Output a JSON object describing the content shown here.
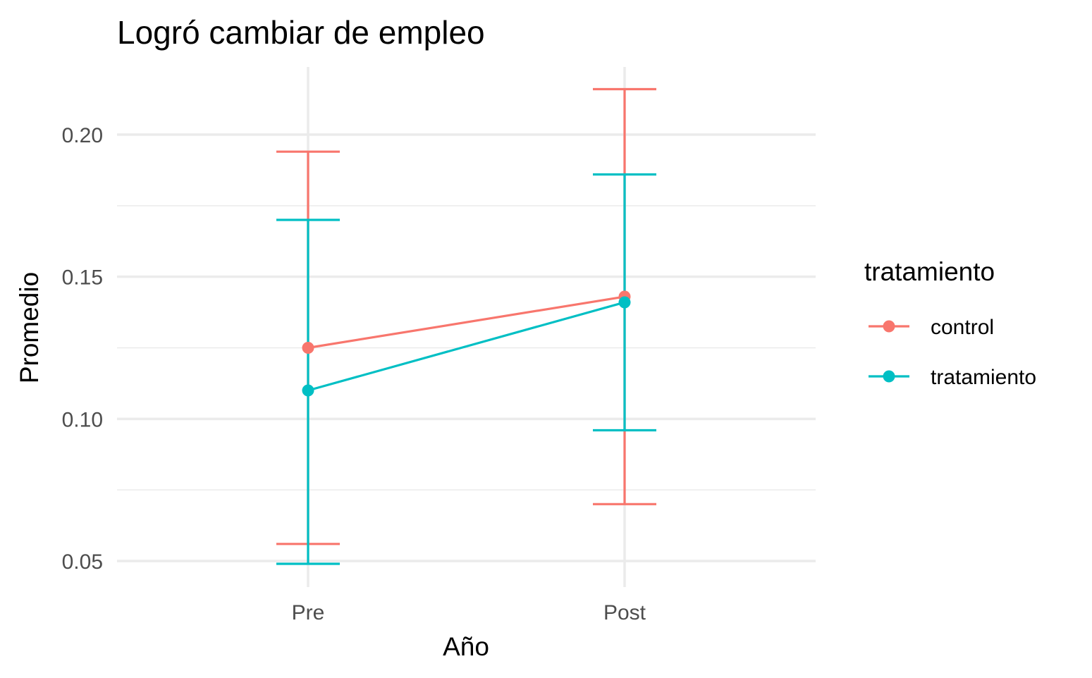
{
  "chart_data": {
    "type": "line",
    "title": "Logró cambiar de empleo",
    "xlabel": "Año",
    "ylabel": "Promedio",
    "categories": [
      "Pre",
      "Post"
    ],
    "ylim": [
      0.04,
      0.225
    ],
    "y_ticks": [
      0.05,
      0.1,
      0.15,
      0.2
    ],
    "y_tick_labels": [
      "0.05",
      "0.10",
      "0.15",
      "0.20"
    ],
    "grid": true,
    "legend": {
      "title": "tratamiento",
      "position": "right"
    },
    "series": [
      {
        "name": "control",
        "color": "#F8766D",
        "values": [
          0.125,
          0.143
        ],
        "lower": [
          0.056,
          0.07
        ],
        "upper": [
          0.194,
          0.216
        ]
      },
      {
        "name": "tratamiento",
        "color": "#00BFC4",
        "values": [
          0.11,
          0.141
        ],
        "lower": [
          0.049,
          0.096
        ],
        "upper": [
          0.17,
          0.186
        ]
      }
    ]
  }
}
